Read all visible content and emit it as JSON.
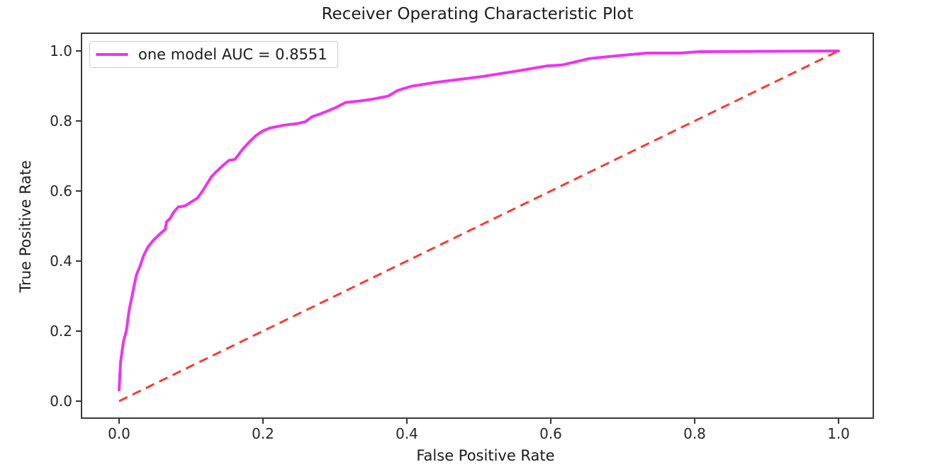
{
  "chart_data": {
    "type": "line",
    "title": "Receiver Operating Characteristic Plot",
    "xlabel": "False Positive Rate",
    "ylabel": "True Positive Rate",
    "x_ticks": [
      "0.0",
      "0.2",
      "0.4",
      "0.6",
      "0.8",
      "1.0"
    ],
    "y_ticks": [
      "0.0",
      "0.2",
      "0.4",
      "0.6",
      "0.8",
      "1.0"
    ],
    "x_tick_values": [
      0.0,
      0.2,
      0.4,
      0.6,
      0.8,
      1.0
    ],
    "y_tick_values": [
      0.0,
      0.2,
      0.4,
      0.6,
      0.8,
      1.0
    ],
    "grid": false,
    "legend_position": "upper left",
    "series": [
      {
        "name": "one model AUC = 0.8551",
        "auc": 0.8551,
        "color": "#EE33EE",
        "line_style": "solid",
        "line_width": 4,
        "points": [
          [
            0.0,
            0.032
          ],
          [
            0.002,
            0.11
          ],
          [
            0.006,
            0.17
          ],
          [
            0.01,
            0.2
          ],
          [
            0.014,
            0.26
          ],
          [
            0.019,
            0.31
          ],
          [
            0.024,
            0.36
          ],
          [
            0.029,
            0.385
          ],
          [
            0.034,
            0.415
          ],
          [
            0.04,
            0.44
          ],
          [
            0.048,
            0.46
          ],
          [
            0.058,
            0.48
          ],
          [
            0.064,
            0.49
          ],
          [
            0.066,
            0.512
          ],
          [
            0.071,
            0.522
          ],
          [
            0.076,
            0.54
          ],
          [
            0.082,
            0.554
          ],
          [
            0.092,
            0.558
          ],
          [
            0.109,
            0.58
          ],
          [
            0.116,
            0.6
          ],
          [
            0.128,
            0.64
          ],
          [
            0.135,
            0.655
          ],
          [
            0.146,
            0.676
          ],
          [
            0.153,
            0.688
          ],
          [
            0.161,
            0.69
          ],
          [
            0.172,
            0.72
          ],
          [
            0.18,
            0.738
          ],
          [
            0.19,
            0.758
          ],
          [
            0.2,
            0.772
          ],
          [
            0.21,
            0.78
          ],
          [
            0.229,
            0.788
          ],
          [
            0.249,
            0.793
          ],
          [
            0.259,
            0.798
          ],
          [
            0.268,
            0.812
          ],
          [
            0.278,
            0.819
          ],
          [
            0.288,
            0.827
          ],
          [
            0.301,
            0.838
          ],
          [
            0.315,
            0.853
          ],
          [
            0.335,
            0.857
          ],
          [
            0.354,
            0.863
          ],
          [
            0.374,
            0.871
          ],
          [
            0.387,
            0.887
          ],
          [
            0.406,
            0.899
          ],
          [
            0.436,
            0.909
          ],
          [
            0.466,
            0.917
          ],
          [
            0.505,
            0.927
          ],
          [
            0.545,
            0.94
          ],
          [
            0.557,
            0.944
          ],
          [
            0.594,
            0.957
          ],
          [
            0.616,
            0.96
          ],
          [
            0.653,
            0.978
          ],
          [
            0.682,
            0.984
          ],
          [
            0.712,
            0.99
          ],
          [
            0.734,
            0.994
          ],
          [
            0.78,
            0.994
          ],
          [
            0.807,
            0.998
          ],
          [
            0.9,
            0.999
          ],
          [
            1.0,
            1.0
          ]
        ]
      },
      {
        "name": "diagonal-reference",
        "color": "#F93B31",
        "line_style": "dashed",
        "line_width": 3,
        "points": [
          [
            0.0,
            0.0
          ],
          [
            1.0,
            1.0
          ]
        ]
      }
    ]
  },
  "legend": {
    "entries": [
      {
        "label": "one model AUC = 0.8551",
        "color": "#EE33EE"
      }
    ]
  },
  "style": {
    "spine_color": "#3b3b3b",
    "tick_color": "#333333",
    "background": "#ffffff"
  }
}
